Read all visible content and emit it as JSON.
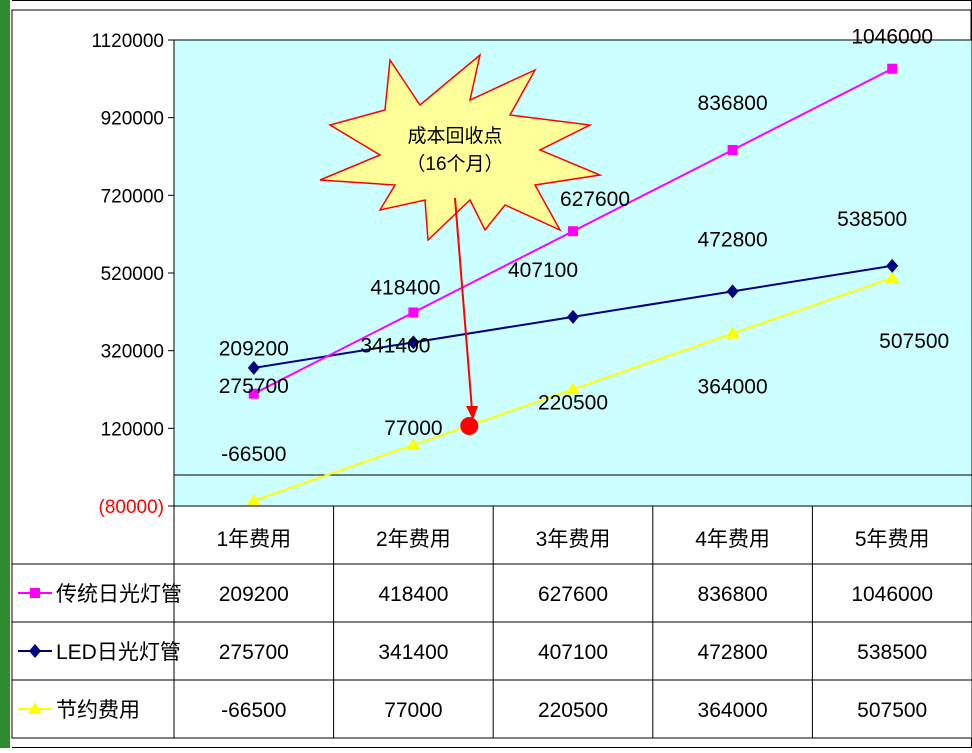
{
  "chart_data": {
    "type": "line",
    "ylim": [
      -80000,
      1120000
    ],
    "yticks": [
      {
        "value": 1120000,
        "label": "1120000"
      },
      {
        "value": 920000,
        "label": "920000"
      },
      {
        "value": 720000,
        "label": "720000"
      },
      {
        "value": 520000,
        "label": "520000"
      },
      {
        "value": 320000,
        "label": "320000"
      },
      {
        "value": 120000,
        "label": "120000"
      },
      {
        "value": -80000,
        "label": "(80000)"
      }
    ],
    "categories": [
      "1年费用",
      "2年费用",
      "3年费用",
      "4年费用",
      "5年费用"
    ],
    "series": [
      {
        "name": "传统日光灯管",
        "color": "#ff00ff",
        "marker": "square",
        "values": [
          209200,
          418400,
          627600,
          836800,
          1046000
        ],
        "labels": [
          "209200",
          "418400",
          "627600",
          "836800",
          "1046000"
        ]
      },
      {
        "name": "LED日光灯管",
        "color": "#000080",
        "marker": "diamond",
        "values": [
          275700,
          341400,
          407100,
          472800,
          538500
        ],
        "labels": [
          "275700",
          "341400",
          "407100",
          "472800",
          "538500"
        ]
      },
      {
        "name": "节约费用",
        "color": "#ffff00",
        "marker": "triangle",
        "values": [
          -66500,
          77000,
          220500,
          364000,
          507500
        ],
        "labels": [
          "-66500",
          "77000",
          "220500",
          "364000",
          "507500"
        ]
      }
    ],
    "annotation": {
      "text_line1": "成本回收点",
      "text_line2": "（16个月）",
      "point_x_index": 1.35,
      "point_y": 126000
    },
    "plot_background": "#ccffff",
    "negative_tick_color": "#ff0000"
  }
}
